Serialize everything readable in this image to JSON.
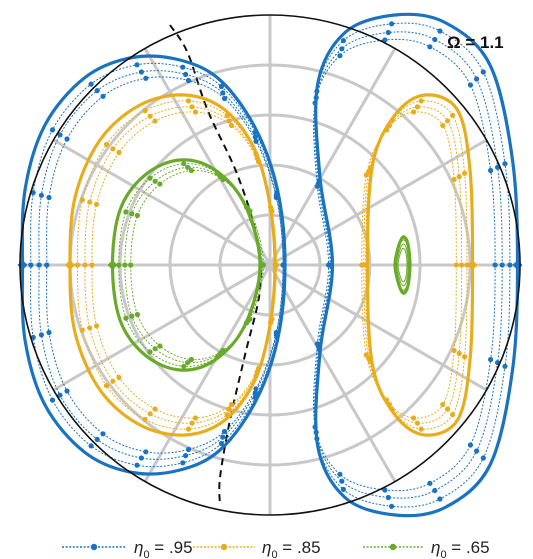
{
  "chart_data": {
    "type": "line",
    "projection": "polar",
    "title": "",
    "annotation": "Ω = 1.1",
    "grid": true,
    "legend_position": "bottom",
    "colors": {
      "eta_095": "#1a73c0",
      "eta_085": "#e8ad1c",
      "eta_065": "#6aaa2a",
      "separatrix": "#111111",
      "grid": "#c8c8c8"
    },
    "series": [
      {
        "id": "eta_095",
        "legend": {
          "symbol": "η",
          "subscript": "0",
          "value": " = .95"
        },
        "left_orbit": [
          [
            -0.99,
            0.0
          ],
          [
            -0.98,
            0.3
          ],
          [
            -0.9,
            0.56
          ],
          [
            -0.74,
            0.75
          ],
          [
            -0.55,
            0.83
          ],
          [
            -0.36,
            0.82
          ],
          [
            -0.2,
            0.74
          ],
          [
            -0.06,
            0.55
          ],
          [
            0.03,
            0.3
          ],
          [
            0.06,
            0.0
          ],
          [
            0.03,
            -0.3
          ],
          [
            -0.06,
            -0.55
          ],
          [
            -0.2,
            -0.74
          ],
          [
            -0.36,
            -0.82
          ],
          [
            -0.55,
            -0.83
          ],
          [
            -0.74,
            -0.75
          ],
          [
            -0.9,
            -0.56
          ],
          [
            -0.98,
            -0.3
          ]
        ],
        "right_orbit": [
          [
            0.99,
            0.0
          ],
          [
            0.97,
            0.42
          ],
          [
            0.88,
            0.8
          ],
          [
            0.7,
            0.97
          ],
          [
            0.5,
            1.0
          ],
          [
            0.3,
            0.93
          ],
          [
            0.19,
            0.72
          ],
          [
            0.2,
            0.35
          ],
          [
            0.25,
            0.0
          ],
          [
            0.2,
            -0.35
          ],
          [
            0.19,
            -0.72
          ],
          [
            0.3,
            -0.93
          ],
          [
            0.5,
            -1.0
          ],
          [
            0.7,
            -0.97
          ],
          [
            0.88,
            -0.8
          ],
          [
            0.97,
            -0.42
          ]
        ]
      },
      {
        "id": "eta_085",
        "legend": {
          "symbol": "η",
          "subscript": "0",
          "value": " = .85"
        },
        "left_orbit": [
          [
            -0.8,
            0.0
          ],
          [
            -0.78,
            0.27
          ],
          [
            -0.68,
            0.5
          ],
          [
            -0.52,
            0.64
          ],
          [
            -0.34,
            0.68
          ],
          [
            -0.18,
            0.62
          ],
          [
            -0.06,
            0.46
          ],
          [
            0.0,
            0.24
          ],
          [
            0.02,
            0.0
          ],
          [
            0.0,
            -0.24
          ],
          [
            -0.06,
            -0.46
          ],
          [
            -0.18,
            -0.62
          ],
          [
            -0.34,
            -0.68
          ],
          [
            -0.52,
            -0.64
          ],
          [
            -0.68,
            -0.5
          ],
          [
            -0.78,
            -0.27
          ]
        ],
        "right_orbit": [
          [
            0.81,
            0.0
          ],
          [
            0.8,
            0.38
          ],
          [
            0.75,
            0.62
          ],
          [
            0.62,
            0.68
          ],
          [
            0.5,
            0.6
          ],
          [
            0.41,
            0.4
          ],
          [
            0.39,
            0.0
          ],
          [
            0.41,
            -0.4
          ],
          [
            0.5,
            -0.6
          ],
          [
            0.62,
            -0.68
          ],
          [
            0.75,
            -0.62
          ],
          [
            0.8,
            -0.38
          ]
        ]
      },
      {
        "id": "eta_065",
        "legend": {
          "symbol": "η",
          "subscript": "0",
          "value": " = .65"
        },
        "left_orbit": [
          [
            -0.63,
            0.0
          ],
          [
            -0.6,
            0.22
          ],
          [
            -0.5,
            0.36
          ],
          [
            -0.36,
            0.42
          ],
          [
            -0.22,
            0.38
          ],
          [
            -0.1,
            0.24
          ],
          [
            -0.04,
            0.0
          ],
          [
            -0.1,
            -0.24
          ],
          [
            -0.22,
            -0.38
          ],
          [
            -0.36,
            -0.42
          ],
          [
            -0.5,
            -0.36
          ],
          [
            -0.6,
            -0.22
          ]
        ],
        "right_orbit": [
          [
            0.56,
            0.0
          ],
          [
            0.55,
            0.09
          ],
          [
            0.53,
            0.11
          ],
          [
            0.51,
            0.06
          ],
          [
            0.5,
            0.0
          ],
          [
            0.51,
            -0.06
          ],
          [
            0.53,
            -0.11
          ],
          [
            0.55,
            -0.09
          ]
        ]
      }
    ],
    "separatrix": [
      [
        -0.4,
        0.96
      ],
      [
        -0.33,
        0.85
      ],
      [
        -0.25,
        0.62
      ],
      [
        -0.13,
        0.36
      ],
      [
        -0.05,
        0.1
      ],
      [
        -0.04,
        -0.1
      ],
      [
        -0.1,
        -0.36
      ],
      [
        -0.16,
        -0.62
      ],
      [
        -0.2,
        -0.85
      ],
      [
        -0.2,
        -0.96
      ]
    ]
  }
}
